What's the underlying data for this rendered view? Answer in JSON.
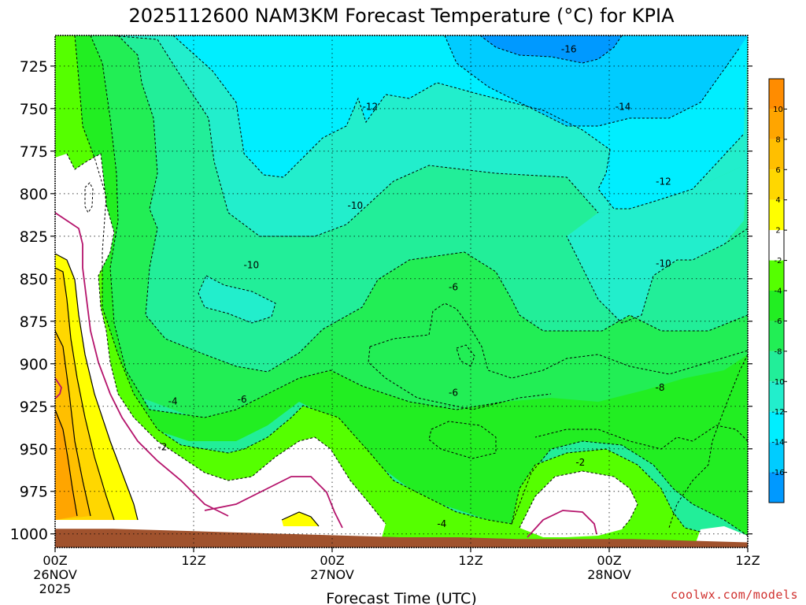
{
  "chart_data": {
    "type": "heatmap",
    "title": "2025112600 NAM3KM Forecast Temperature (°C) for KPIA",
    "xlabel": "Forecast Time (UTC)",
    "ylabel": "",
    "x_ticks": [
      {
        "label": "00Z",
        "date": "26NOV",
        "year": "2025"
      },
      {
        "label": "12Z",
        "date": "",
        "year": ""
      },
      {
        "label": "00Z",
        "date": "27NOV",
        "year": ""
      },
      {
        "label": "12Z",
        "date": "",
        "year": ""
      },
      {
        "label": "00Z",
        "date": "28NOV",
        "year": ""
      },
      {
        "label": "12Z",
        "date": "",
        "year": ""
      }
    ],
    "x_hours": [
      0,
      12,
      24,
      36,
      48,
      60
    ],
    "xlim_hours": [
      0,
      60
    ],
    "y_ticks": [
      "725",
      "750",
      "775",
      "800",
      "825",
      "850",
      "875",
      "900",
      "925",
      "950",
      "975",
      "1000"
    ],
    "y_values": [
      725,
      750,
      775,
      800,
      825,
      850,
      875,
      900,
      925,
      950,
      975,
      1000
    ],
    "ylim_hpa": [
      707,
      1008
    ],
    "colorbar": {
      "labels": [
        "10",
        "8",
        "6",
        "4",
        "2",
        "-2",
        "-4",
        "-6",
        "-8",
        "-10",
        "-12",
        "-14",
        "-16"
      ],
      "levels": [
        12,
        10,
        8,
        6,
        4,
        2,
        -2,
        -4,
        -6,
        -8,
        -10,
        -12,
        -14,
        -16,
        -18
      ],
      "colors": [
        "#ff8c00",
        "#ffa500",
        "#ffbf00",
        "#ffd700",
        "#ffff00",
        "#ffffff",
        "#55ff00",
        "#22ee22",
        "#22ee55",
        "#22ee99",
        "#22eecc",
        "#00eeff",
        "#00ccff",
        "#0099ff"
      ]
    },
    "contour_labels": [
      {
        "text": "-16",
        "hour": 44.5,
        "hpa": 715
      },
      {
        "text": "-14",
        "hour": 49.2,
        "hpa": 749
      },
      {
        "text": "-12",
        "hour": 27.3,
        "hpa": 749
      },
      {
        "text": "-12",
        "hour": 52.7,
        "hpa": 793
      },
      {
        "text": "-10",
        "hour": 26.0,
        "hpa": 807
      },
      {
        "text": "-10",
        "hour": 17.0,
        "hpa": 842
      },
      {
        "text": "-10",
        "hour": 52.7,
        "hpa": 841
      },
      {
        "text": "-6",
        "hour": 34.5,
        "hpa": 855
      },
      {
        "text": "-6",
        "hour": 34.5,
        "hpa": 917
      },
      {
        "text": "-6",
        "hour": 16.2,
        "hpa": 921
      },
      {
        "text": "-8",
        "hour": 52.4,
        "hpa": 914
      },
      {
        "text": "-4",
        "hour": 10.2,
        "hpa": 922
      },
      {
        "text": "-2",
        "hour": 9.3,
        "hpa": 949
      },
      {
        "text": "-2",
        "hour": 45.5,
        "hpa": 958
      },
      {
        "text": "-4",
        "hour": 33.5,
        "hpa": 994
      }
    ],
    "surface_pressure_hpa": {
      "hours": [
        0,
        5,
        10,
        15,
        20,
        25,
        30,
        35,
        40,
        45,
        50,
        55,
        60
      ],
      "values": [
        997,
        997,
        998,
        999,
        1000,
        1001,
        1002,
        1002,
        1003,
        1003,
        1003,
        1004,
        1005
      ]
    }
  },
  "credit": "coolwx.com/models"
}
